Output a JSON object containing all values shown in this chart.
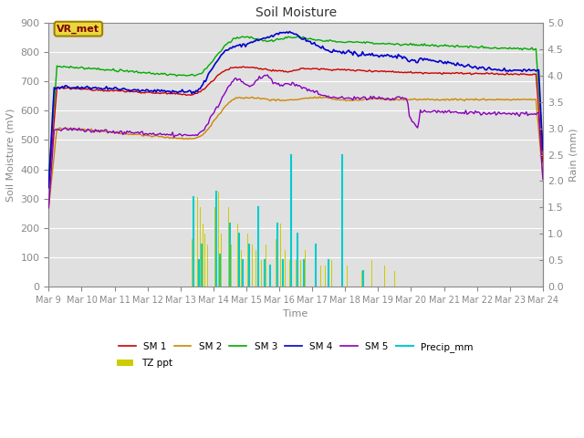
{
  "title": "Soil Moisture",
  "xlabel": "Time",
  "ylabel_left": "Soil Moisture (mV)",
  "ylabel_right": "Rain (mm)",
  "ylim_left": [
    0,
    900
  ],
  "ylim_right": [
    0,
    5.0
  ],
  "x_tick_labels": [
    "Mar 9",
    "Mar 10",
    "Mar 11",
    "Mar 12",
    "Mar 13",
    "Mar 14",
    "Mar 15",
    "Mar 16",
    "Mar 17",
    "Mar 18",
    "Mar 19",
    "Mar 20",
    "Mar 21",
    "Mar 22",
    "Mar 23",
    "Mar 24"
  ],
  "fig_bg_color": "#ffffff",
  "plot_bg_color": "#e0e0e0",
  "label_box_color": "#e8d840",
  "label_box_edge_color": "#a08000",
  "label_box_text": "VR_met",
  "label_text_color": "#800000",
  "colors": {
    "SM1": "#cc0000",
    "SM2": "#cc8800",
    "SM3": "#00aa00",
    "SM4": "#0000cc",
    "SM5": "#8800bb",
    "Precip": "#00cccc",
    "TZ": "#cccc00"
  },
  "grid_color": "#ffffff",
  "axis_color": "#888888",
  "tick_label_color": "#888888"
}
